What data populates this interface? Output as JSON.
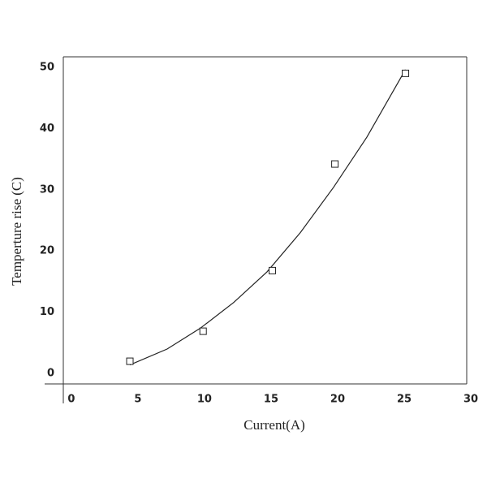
{
  "chart_data": {
    "type": "scatter",
    "xlabel": "Current(A)",
    "ylabel": "Temperture rise (C)",
    "x": [
      4.7,
      10.2,
      15.4,
      20.1,
      25.4
    ],
    "values": [
      2,
      6.9,
      16.8,
      34.2,
      49
    ],
    "color": "#222222",
    "fit": {
      "x": [
        4.7,
        7.5,
        10,
        12.5,
        15,
        17.5,
        20,
        22.5,
        25.4
      ],
      "values": [
        1.4,
        4,
        7.4,
        11.6,
        16.6,
        23,
        30.4,
        38.6,
        49.6
      ]
    },
    "xlim": [
      -0.3,
      30
    ],
    "ylim": [
      -1.7,
      51.7
    ],
    "xticks": [
      0,
      5,
      10,
      15,
      20,
      25,
      30
    ],
    "yticks": [
      0,
      10,
      20,
      30,
      40,
      50
    ],
    "grid": false
  }
}
